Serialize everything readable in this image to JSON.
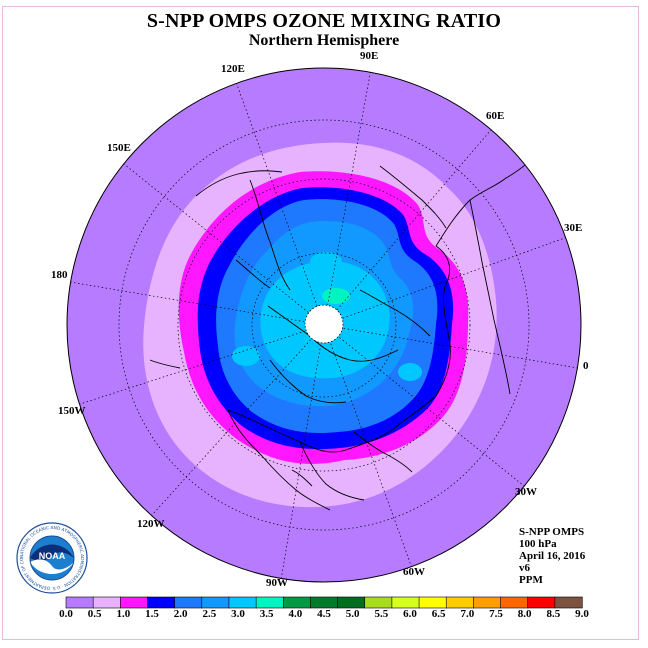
{
  "title": "S-NPP OMPS OZONE MIXING RATIO",
  "subtitle": "Northern Hemisphere",
  "longitude_labels": [
    "90E",
    "60E",
    "30E",
    "0",
    "30W",
    "60W",
    "90W",
    "120W",
    "150W",
    "180",
    "150E",
    "120E"
  ],
  "info": {
    "instrument": "S-NPP OMPS",
    "level": "100 hPa",
    "date": "April 16, 2016",
    "version": "v6",
    "units": "PPM"
  },
  "colorbar": {
    "ticks": [
      "0.0",
      "0.5",
      "1.0",
      "1.5",
      "2.0",
      "2.5",
      "3.0",
      "3.5",
      "4.0",
      "4.5",
      "5.0",
      "5.5",
      "6.0",
      "6.5",
      "7.0",
      "7.5",
      "8.0",
      "8.5",
      "9.0"
    ],
    "colors": [
      "#b77bff",
      "#e7b3ff",
      "#ff18ff",
      "#0000ff",
      "#1f79ff",
      "#1199ff",
      "#00c8ff",
      "#00f4c2",
      "#009944",
      "#007a2b",
      "#006d1f",
      "#a8dd1e",
      "#d5ff1e",
      "#ffff00",
      "#ffcc00",
      "#ff9e00",
      "#ff6600",
      "#ff0000",
      "#7d5240"
    ]
  },
  "logo": {
    "text": "NOAA",
    "ring_text": "NATIONAL OCEANIC AND ATMOSPHERIC ADMINISTRATION · U.S. DEPARTMENT OF COMMERCE"
  },
  "map": {
    "ocean_color": "#b77bff",
    "band_colors": [
      "#e7b3ff",
      "#ff18ff",
      "#0000ff",
      "#1f79ff",
      "#1199ff",
      "#00c8ff",
      "#00f4c2",
      "#ffffff"
    ]
  }
}
